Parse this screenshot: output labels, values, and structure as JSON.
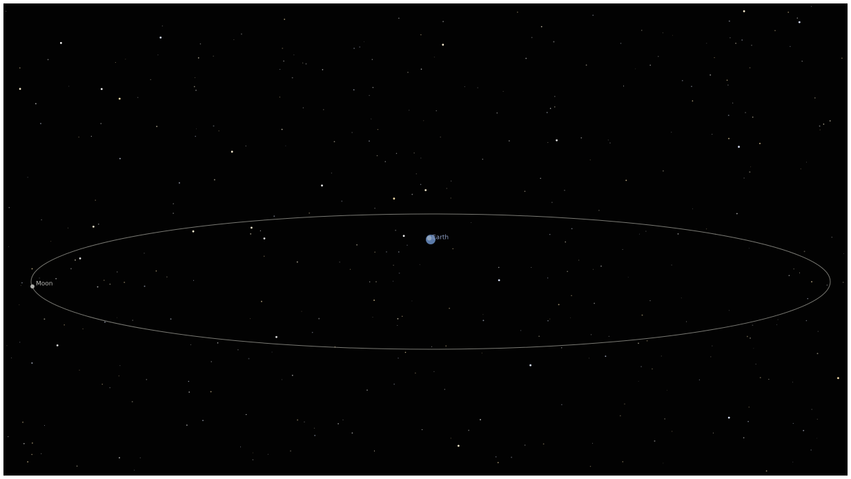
{
  "bodies": [
    {
      "label": "Earth"
    },
    {
      "label": "Moon"
    }
  ]
}
